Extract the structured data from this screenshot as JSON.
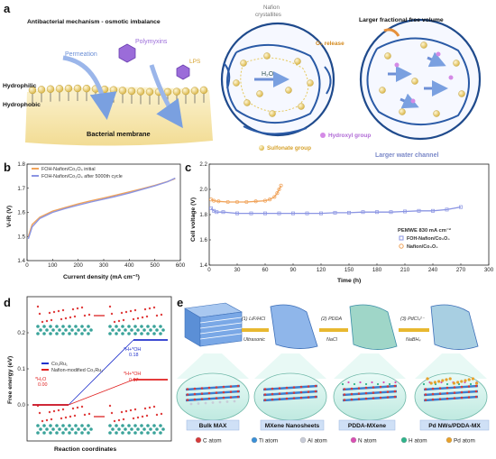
{
  "panels": {
    "a": "a",
    "b": "b",
    "c": "c",
    "d": "d",
    "e": "e"
  },
  "panel_a": {
    "title": "Antibacterial mechanism - osmotic imbalance",
    "permeation": "Permeation",
    "polymyxins": "Polymyxins",
    "lps": "LPS",
    "hydrophilic": "Hydrophilic",
    "hydrophobic": "Hydrophobic",
    "membrane": "Bacterial membrane",
    "nafion_1": "Nafion",
    "nafion_2": "crystallites",
    "o2": "O₂ release",
    "h2o": "H₂O",
    "ffv": "Larger fractional free volume",
    "hydroxyl": "Hydroxyl group",
    "sulfonate": "Sulfonate group",
    "channel": "Larger water channel"
  },
  "chart_b": {
    "type": "line",
    "xlabel": "Current density (mA cm⁻²)",
    "ylabel": "V-iR (V)",
    "xlim": [
      0,
      600
    ],
    "ylim": [
      1.4,
      1.8
    ],
    "xticks": [
      "0",
      "100",
      "200",
      "300",
      "400",
      "500",
      "600"
    ],
    "yticks": [
      "1.4",
      "1.5",
      "1.6",
      "1.7",
      "1.8"
    ],
    "series": [
      {
        "name": "FOH-Nafion/Co₃O₄ initial",
        "color": "#f0a35a",
        "x": [
          5,
          20,
          50,
          100,
          150,
          200,
          250,
          300,
          350,
          400,
          450,
          500,
          550,
          580
        ],
        "y": [
          1.5,
          1.55,
          1.58,
          1.605,
          1.62,
          1.635,
          1.648,
          1.66,
          1.672,
          1.685,
          1.698,
          1.712,
          1.728,
          1.74
        ]
      },
      {
        "name": "FOH-Nafion/Co₃O₄ after 5000th cycle",
        "color": "#8b95e3",
        "x": [
          5,
          20,
          50,
          100,
          150,
          200,
          250,
          300,
          350,
          400,
          450,
          500,
          550,
          580
        ],
        "y": [
          1.49,
          1.54,
          1.575,
          1.6,
          1.616,
          1.63,
          1.643,
          1.655,
          1.667,
          1.68,
          1.695,
          1.71,
          1.727,
          1.742
        ]
      }
    ]
  },
  "chart_c": {
    "type": "scatter",
    "xlabel": "Time (h)",
    "ylabel": "Cell voltage (V)",
    "xlim": [
      0,
      300
    ],
    "ylim": [
      1.4,
      2.2
    ],
    "xticks": [
      "0",
      "30",
      "60",
      "90",
      "120",
      "150",
      "180",
      "210",
      "240",
      "270",
      "300"
    ],
    "yticks": [
      "1.4",
      "1.6",
      "1.8",
      "2.0",
      "2.2"
    ],
    "annotation": "PEMWE 830 mA cm⁻²",
    "series": [
      {
        "name": "FOH-Nafion/Co₃O₄",
        "color": "#8b95e3",
        "x": [
          2,
          5,
          8,
          15,
          30,
          45,
          60,
          75,
          90,
          105,
          120,
          135,
          150,
          165,
          180,
          195,
          210,
          225,
          240,
          255,
          270
        ],
        "y": [
          1.85,
          1.83,
          1.82,
          1.82,
          1.81,
          1.81,
          1.81,
          1.81,
          1.81,
          1.81,
          1.81,
          1.815,
          1.815,
          1.82,
          1.82,
          1.82,
          1.825,
          1.83,
          1.83,
          1.84,
          1.86
        ]
      },
      {
        "name": "Nafion/Co₃O₄",
        "color": "#f0a35a",
        "x": [
          2,
          5,
          10,
          20,
          30,
          40,
          50,
          60,
          65,
          70,
          73,
          75,
          77
        ],
        "y": [
          1.92,
          1.91,
          1.905,
          1.9,
          1.9,
          1.9,
          1.905,
          1.91,
          1.92,
          1.94,
          1.97,
          2.0,
          2.03
        ]
      }
    ]
  },
  "chart_d": {
    "type": "line",
    "xlabel": "Reaction coordinates",
    "ylabel": "Free energy (eV)",
    "ylim": [
      -0.1,
      0.3
    ],
    "yticks": [
      "0.0",
      "0.1",
      "0.2"
    ],
    "series": [
      {
        "name": "Co₃Ru₁",
        "color": "#2233cc",
        "values": [
          0.0,
          0.18
        ]
      },
      {
        "name": "Nafion-modified Co₃Ru₁",
        "color": "#e02020",
        "values": [
          0.0,
          0.07
        ]
      }
    ],
    "h2o_label": "*H₂O",
    "h2o_value": "0.00",
    "hoh_label": "*H+*OH",
    "hoh_blue": "0.18",
    "hoh_red": "0.07"
  },
  "panel_e": {
    "step1_a": "(1) LiF/HCl",
    "step1_b": "Ultrasonic",
    "step2_a": "(2) PDDA",
    "step2_b": "NaCl",
    "step3_a": "(3) PdCl₄²⁻",
    "step3_b": "NaBH₄",
    "labels": [
      "Bulk MAX",
      "MXene Nanosheets",
      "PDDA-MXene",
      "Pd NWs/PDDA-MX"
    ],
    "legend": [
      {
        "name": "C atom",
        "color": "#d63a3a"
      },
      {
        "name": "Ti atom",
        "color": "#3a8fd6"
      },
      {
        "name": "Al atom",
        "color": "#c8ccd8"
      },
      {
        "name": "N atom",
        "color": "#d94fb3"
      },
      {
        "name": "H atom",
        "color": "#2fb38a"
      },
      {
        "name": "Pd atom",
        "color": "#e8a12a"
      }
    ]
  }
}
